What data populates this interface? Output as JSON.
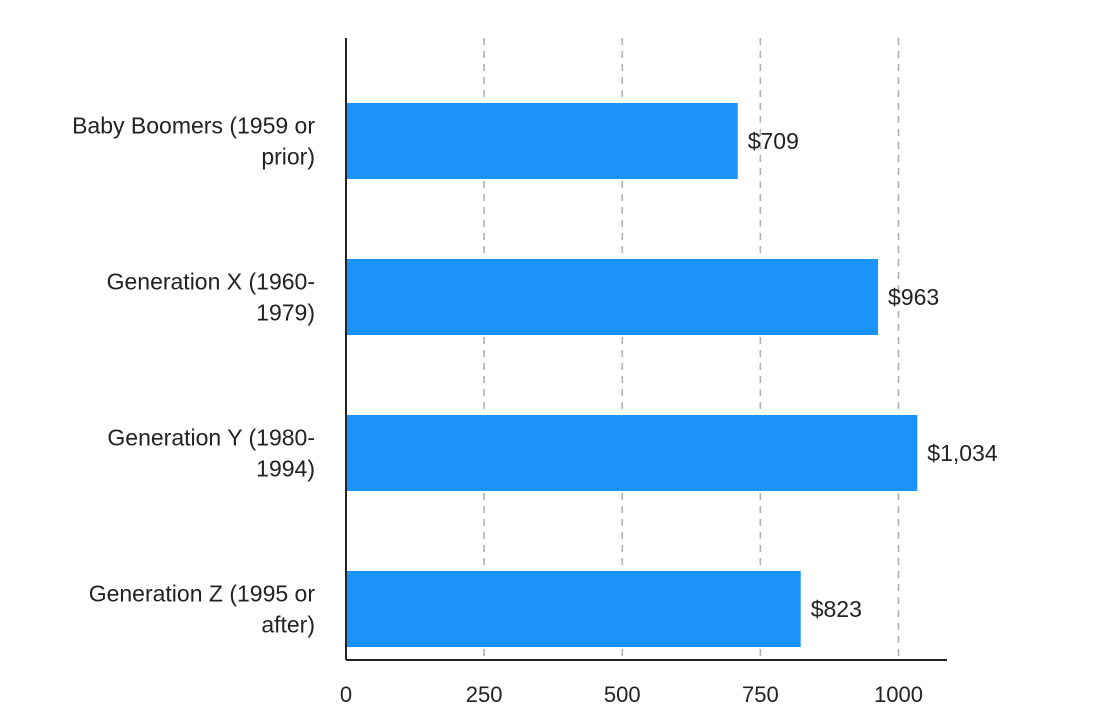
{
  "chart_data": {
    "type": "bar",
    "orientation": "horizontal",
    "categories": [
      [
        "Baby Boomers (1959 or",
        "prior)"
      ],
      [
        "Generation X (1960-",
        "1979)"
      ],
      [
        "Generation Y (1980-",
        "1994)"
      ],
      [
        "Generation Z (1995 or",
        "after)"
      ]
    ],
    "values": [
      709,
      963,
      1034,
      823
    ],
    "value_labels": [
      "$709",
      "$963",
      "$1,034",
      "$823"
    ],
    "xlim": [
      0,
      1090
    ],
    "xticks": [
      0,
      250,
      500,
      750,
      1000
    ],
    "xtick_labels": [
      "0",
      "250",
      "500",
      "750",
      "1000"
    ],
    "grid": "vertical dashed",
    "title": "",
    "xlabel": "",
    "ylabel": "",
    "colors": {
      "bar": "#1a93fb",
      "grid": "#b0b0b0",
      "axis": "#222222",
      "text": "#222222"
    }
  }
}
